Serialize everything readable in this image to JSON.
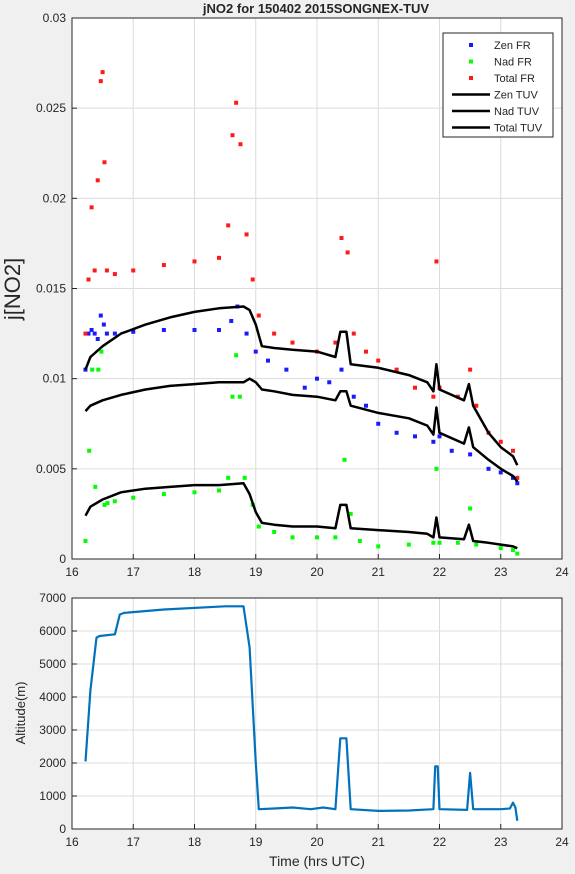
{
  "chart_data": [
    {
      "type": "scatter",
      "title": "jNO2 for 150402 2015SONGNEX-TUV",
      "xlabel": "",
      "ylabel": "j[NO2]",
      "xlim": [
        16,
        24
      ],
      "ylim": [
        0,
        0.03
      ],
      "xticks": [
        "16",
        "17",
        "18",
        "19",
        "20",
        "21",
        "22",
        "23",
        "24"
      ],
      "yticks": [
        "0",
        "0.005",
        "0.01",
        "0.015",
        "0.02",
        "0.025",
        "0.03"
      ],
      "grid": true,
      "legend_position": "top-right",
      "series": [
        {
          "name": "Zen FR",
          "kind": "markers",
          "color": "#1a1aff",
          "points": [
            [
              16.22,
              0.0105
            ],
            [
              16.27,
              0.0125
            ],
            [
              16.32,
              0.0127
            ],
            [
              16.37,
              0.0125
            ],
            [
              16.42,
              0.0122
            ],
            [
              16.47,
              0.0135
            ],
            [
              16.52,
              0.013
            ],
            [
              16.57,
              0.0125
            ],
            [
              16.7,
              0.0125
            ],
            [
              17.0,
              0.0126
            ],
            [
              17.5,
              0.0127
            ],
            [
              18.0,
              0.0127
            ],
            [
              18.4,
              0.0127
            ],
            [
              18.6,
              0.0132
            ],
            [
              18.7,
              0.014
            ],
            [
              18.85,
              0.0125
            ],
            [
              19.0,
              0.0115
            ],
            [
              19.2,
              0.011
            ],
            [
              19.5,
              0.0105
            ],
            [
              19.8,
              0.0095
            ],
            [
              20.0,
              0.01
            ],
            [
              20.2,
              0.0098
            ],
            [
              20.4,
              0.0105
            ],
            [
              20.6,
              0.009
            ],
            [
              20.8,
              0.0085
            ],
            [
              21.0,
              0.0075
            ],
            [
              21.3,
              0.007
            ],
            [
              21.6,
              0.0068
            ],
            [
              21.9,
              0.0065
            ],
            [
              22.0,
              0.0068
            ],
            [
              22.2,
              0.006
            ],
            [
              22.5,
              0.0058
            ],
            [
              22.8,
              0.005
            ],
            [
              23.0,
              0.0048
            ],
            [
              23.2,
              0.0045
            ],
            [
              23.27,
              0.0042
            ]
          ]
        },
        {
          "name": "Nad FR",
          "kind": "markers",
          "color": "#00ff00",
          "points": [
            [
              16.22,
              0.001
            ],
            [
              16.28,
              0.006
            ],
            [
              16.33,
              0.0105
            ],
            [
              16.38,
              0.004
            ],
            [
              16.43,
              0.0105
            ],
            [
              16.48,
              0.0115
            ],
            [
              16.53,
              0.003
            ],
            [
              16.58,
              0.0031
            ],
            [
              16.7,
              0.0032
            ],
            [
              17.0,
              0.0034
            ],
            [
              17.5,
              0.0036
            ],
            [
              18.0,
              0.0037
            ],
            [
              18.4,
              0.0038
            ],
            [
              18.55,
              0.0045
            ],
            [
              18.62,
              0.009
            ],
            [
              18.68,
              0.0113
            ],
            [
              18.74,
              0.009
            ],
            [
              18.82,
              0.0045
            ],
            [
              18.95,
              0.003
            ],
            [
              19.05,
              0.0018
            ],
            [
              19.3,
              0.0015
            ],
            [
              19.6,
              0.0012
            ],
            [
              20.0,
              0.0012
            ],
            [
              20.3,
              0.0012
            ],
            [
              20.45,
              0.0055
            ],
            [
              20.55,
              0.0025
            ],
            [
              20.7,
              0.001
            ],
            [
              21.0,
              0.0007
            ],
            [
              21.5,
              0.0008
            ],
            [
              21.9,
              0.0009
            ],
            [
              21.95,
              0.005
            ],
            [
              22.0,
              0.0009
            ],
            [
              22.3,
              0.0009
            ],
            [
              22.5,
              0.0028
            ],
            [
              22.6,
              0.0008
            ],
            [
              23.0,
              0.0006
            ],
            [
              23.2,
              0.0005
            ],
            [
              23.27,
              0.0003
            ]
          ]
        },
        {
          "name": "Total FR",
          "kind": "markers",
          "color": "#ff1a1a",
          "points": [
            [
              16.22,
              0.0125
            ],
            [
              16.27,
              0.0155
            ],
            [
              16.32,
              0.0195
            ],
            [
              16.37,
              0.016
            ],
            [
              16.42,
              0.021
            ],
            [
              16.47,
              0.0265
            ],
            [
              16.5,
              0.027
            ],
            [
              16.53,
              0.022
            ],
            [
              16.57,
              0.016
            ],
            [
              16.7,
              0.0158
            ],
            [
              17.0,
              0.016
            ],
            [
              17.5,
              0.0163
            ],
            [
              18.0,
              0.0165
            ],
            [
              18.4,
              0.0167
            ],
            [
              18.55,
              0.0185
            ],
            [
              18.62,
              0.0235
            ],
            [
              18.68,
              0.0253
            ],
            [
              18.75,
              0.023
            ],
            [
              18.85,
              0.018
            ],
            [
              18.95,
              0.0155
            ],
            [
              19.05,
              0.0135
            ],
            [
              19.3,
              0.0125
            ],
            [
              19.6,
              0.012
            ],
            [
              20.0,
              0.0115
            ],
            [
              20.3,
              0.012
            ],
            [
              20.4,
              0.0178
            ],
            [
              20.5,
              0.017
            ],
            [
              20.6,
              0.0125
            ],
            [
              20.8,
              0.0115
            ],
            [
              21.0,
              0.011
            ],
            [
              21.3,
              0.0105
            ],
            [
              21.6,
              0.0095
            ],
            [
              21.9,
              0.009
            ],
            [
              21.95,
              0.0165
            ],
            [
              22.0,
              0.0095
            ],
            [
              22.3,
              0.009
            ],
            [
              22.5,
              0.0105
            ],
            [
              22.6,
              0.0085
            ],
            [
              22.8,
              0.007
            ],
            [
              23.0,
              0.0065
            ],
            [
              23.2,
              0.006
            ],
            [
              23.27,
              0.0045
            ]
          ]
        },
        {
          "name": "Zen TUV",
          "kind": "line",
          "color": "#000000",
          "points": [
            [
              16.22,
              0.0105
            ],
            [
              16.3,
              0.0112
            ],
            [
              16.5,
              0.0118
            ],
            [
              16.8,
              0.0125
            ],
            [
              17.2,
              0.013
            ],
            [
              17.6,
              0.0134
            ],
            [
              18.0,
              0.0137
            ],
            [
              18.4,
              0.0139
            ],
            [
              18.8,
              0.014
            ],
            [
              18.9,
              0.0138
            ],
            [
              19.0,
              0.013
            ],
            [
              19.1,
              0.0118
            ],
            [
              19.3,
              0.0117
            ],
            [
              19.6,
              0.0116
            ],
            [
              20.0,
              0.0115
            ],
            [
              20.3,
              0.0112
            ],
            [
              20.38,
              0.0126
            ],
            [
              20.48,
              0.0126
            ],
            [
              20.55,
              0.0108
            ],
            [
              21.0,
              0.0106
            ],
            [
              21.5,
              0.0102
            ],
            [
              21.8,
              0.0098
            ],
            [
              21.9,
              0.0093
            ],
            [
              21.95,
              0.0108
            ],
            [
              22.0,
              0.0094
            ],
            [
              22.4,
              0.0088
            ],
            [
              22.48,
              0.0097
            ],
            [
              22.55,
              0.0085
            ],
            [
              22.8,
              0.007
            ],
            [
              23.0,
              0.0062
            ],
            [
              23.2,
              0.0057
            ],
            [
              23.27,
              0.0052
            ]
          ]
        },
        {
          "name": "Nad TUV",
          "kind": "line",
          "color": "#000000",
          "points": [
            [
              16.22,
              0.0082
            ],
            [
              16.3,
              0.0085
            ],
            [
              16.5,
              0.0088
            ],
            [
              16.8,
              0.0091
            ],
            [
              17.2,
              0.0094
            ],
            [
              17.6,
              0.0096
            ],
            [
              18.0,
              0.0097
            ],
            [
              18.4,
              0.0098
            ],
            [
              18.8,
              0.0098
            ],
            [
              18.9,
              0.01
            ],
            [
              19.0,
              0.0098
            ],
            [
              19.1,
              0.0094
            ],
            [
              19.3,
              0.0093
            ],
            [
              19.6,
              0.0091
            ],
            [
              20.0,
              0.009
            ],
            [
              20.3,
              0.0088
            ],
            [
              20.38,
              0.0093
            ],
            [
              20.48,
              0.0093
            ],
            [
              20.55,
              0.0085
            ],
            [
              21.0,
              0.0081
            ],
            [
              21.5,
              0.0078
            ],
            [
              21.8,
              0.0074
            ],
            [
              21.9,
              0.0069
            ],
            [
              21.95,
              0.0084
            ],
            [
              22.0,
              0.007
            ],
            [
              22.4,
              0.0064
            ],
            [
              22.48,
              0.0073
            ],
            [
              22.55,
              0.0062
            ],
            [
              22.8,
              0.0055
            ],
            [
              23.0,
              0.005
            ],
            [
              23.2,
              0.0046
            ],
            [
              23.27,
              0.0043
            ]
          ]
        },
        {
          "name": "Total TUV",
          "kind": "line",
          "color": "#000000",
          "points": [
            [
              16.22,
              0.0024
            ],
            [
              16.3,
              0.0029
            ],
            [
              16.5,
              0.0033
            ],
            [
              16.8,
              0.0037
            ],
            [
              17.2,
              0.0039
            ],
            [
              17.6,
              0.004
            ],
            [
              18.0,
              0.0041
            ],
            [
              18.4,
              0.0041
            ],
            [
              18.8,
              0.0042
            ],
            [
              18.9,
              0.0036
            ],
            [
              19.0,
              0.0026
            ],
            [
              19.1,
              0.002
            ],
            [
              19.3,
              0.0019
            ],
            [
              19.6,
              0.0018
            ],
            [
              20.0,
              0.0018
            ],
            [
              20.3,
              0.0017
            ],
            [
              20.38,
              0.003
            ],
            [
              20.48,
              0.003
            ],
            [
              20.55,
              0.0017
            ],
            [
              21.0,
              0.0016
            ],
            [
              21.5,
              0.0015
            ],
            [
              21.8,
              0.0014
            ],
            [
              21.9,
              0.0012
            ],
            [
              21.95,
              0.0023
            ],
            [
              22.0,
              0.0012
            ],
            [
              22.4,
              0.0011
            ],
            [
              22.48,
              0.0019
            ],
            [
              22.55,
              0.001
            ],
            [
              22.8,
              0.0009
            ],
            [
              23.0,
              0.0008
            ],
            [
              23.2,
              0.0007
            ],
            [
              23.27,
              0.0006
            ]
          ]
        }
      ]
    },
    {
      "type": "line",
      "title": "",
      "xlabel": "Time (hrs UTC)",
      "ylabel": "Altitude(m)",
      "xlim": [
        16,
        24
      ],
      "ylim": [
        0,
        7000
      ],
      "xticks": [
        "16",
        "17",
        "18",
        "19",
        "20",
        "21",
        "22",
        "23",
        "24"
      ],
      "yticks": [
        "0",
        "1000",
        "2000",
        "3000",
        "4000",
        "5000",
        "6000",
        "7000"
      ],
      "grid": true,
      "series": [
        {
          "name": "",
          "kind": "line",
          "color": "#0072bd",
          "points": [
            [
              16.22,
              2050
            ],
            [
              16.3,
              4200
            ],
            [
              16.4,
              5800
            ],
            [
              16.45,
              5850
            ],
            [
              16.7,
              5900
            ],
            [
              16.78,
              6500
            ],
            [
              16.85,
              6550
            ],
            [
              17.5,
              6650
            ],
            [
              18.5,
              6750
            ],
            [
              18.8,
              6750
            ],
            [
              18.9,
              5500
            ],
            [
              19.0,
              2000
            ],
            [
              19.05,
              600
            ],
            [
              19.3,
              620
            ],
            [
              19.6,
              650
            ],
            [
              19.9,
              600
            ],
            [
              20.1,
              650
            ],
            [
              20.3,
              600
            ],
            [
              20.38,
              2750
            ],
            [
              20.48,
              2750
            ],
            [
              20.55,
              600
            ],
            [
              21.0,
              550
            ],
            [
              21.5,
              560
            ],
            [
              21.9,
              600
            ],
            [
              21.93,
              1900
            ],
            [
              21.97,
              1900
            ],
            [
              22.0,
              600
            ],
            [
              22.45,
              580
            ],
            [
              22.5,
              1700
            ],
            [
              22.55,
              600
            ],
            [
              23.0,
              600
            ],
            [
              23.15,
              620
            ],
            [
              23.2,
              800
            ],
            [
              23.24,
              650
            ],
            [
              23.27,
              250
            ]
          ]
        }
      ]
    }
  ]
}
